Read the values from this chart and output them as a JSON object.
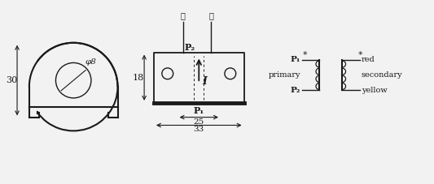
{
  "bg_color": "#f2f2f2",
  "line_color": "#1a1a1a",
  "dim_30": "30",
  "dim_18": "18",
  "dim_phi8": "φ8",
  "dim_25": "25",
  "dim_33": "33",
  "label_huang": "黄",
  "label_hong": "红",
  "label_P1": "P₁",
  "label_P2": "P₂",
  "label_primary": "primary",
  "label_secondary": "secondary",
  "label_red": "red",
  "label_yellow": "yellow",
  "label_P1s": "P₁",
  "label_P2s": "P₂"
}
